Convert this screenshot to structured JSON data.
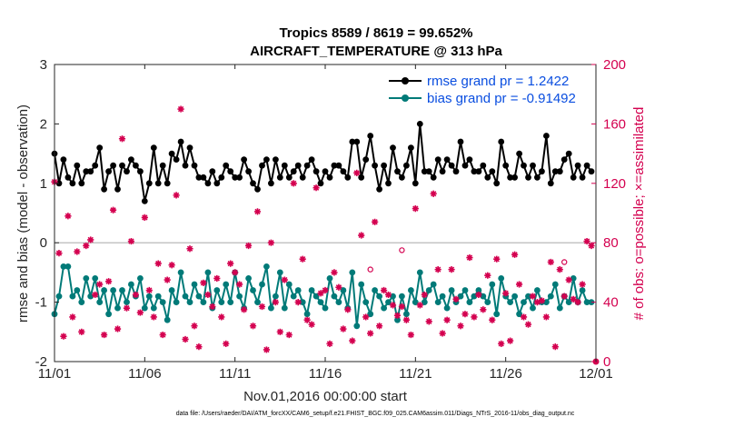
{
  "chart_data": {
    "type": "line",
    "title": "Tropics 8589 / 8619 = 99.652%",
    "subtitle": "AIRCRAFT_TEMPERATURE @ 313 hPa",
    "xlabel": "Nov.01,2016 00:00:00 start",
    "ylabel": "rmse and bias (model - observation)",
    "ylabel_right": "# of obs: o=possible; ×=assimilated",
    "x_tick_labels": [
      "11/01",
      "11/06",
      "11/11",
      "11/16",
      "11/21",
      "11/26",
      "12/01"
    ],
    "x_tick_days": [
      0,
      5,
      10,
      15,
      20,
      25,
      30
    ],
    "xlim": [
      0,
      30
    ],
    "ylim": [
      -2,
      3
    ],
    "y_ticks": [
      -2,
      -1,
      0,
      1,
      2,
      3
    ],
    "ylim_right": [
      0,
      200
    ],
    "y_ticks_right": [
      0,
      40,
      80,
      120,
      160,
      200
    ],
    "legend_position": "top-right",
    "footer": "data file: /Users/raeder/DAI/ATM_forcXX/CAM6_setup/f.e21.FHIST_BGC.f09_025.CAM6assim.011/Diags_NTrS_2016-11/obs_diag_output.nc",
    "series": [
      {
        "name": "rmse grand pr = 1.2422",
        "color": "#000000",
        "axis": "left",
        "x": [
          0.0,
          0.25,
          0.5,
          0.75,
          1.0,
          1.25,
          1.5,
          1.75,
          2.0,
          2.25,
          2.5,
          2.75,
          3.0,
          3.25,
          3.5,
          3.75,
          4.0,
          4.25,
          4.5,
          4.75,
          5.0,
          5.25,
          5.5,
          5.75,
          6.0,
          6.25,
          6.5,
          6.75,
          7.0,
          7.25,
          7.5,
          7.75,
          8.0,
          8.25,
          8.5,
          8.75,
          9.0,
          9.25,
          9.5,
          9.75,
          10.0,
          10.25,
          10.5,
          10.75,
          11.0,
          11.25,
          11.5,
          11.75,
          12.0,
          12.25,
          12.5,
          12.75,
          13.0,
          13.25,
          13.5,
          13.75,
          14.0,
          14.25,
          14.5,
          14.75,
          15.0,
          15.25,
          15.5,
          15.75,
          16.0,
          16.25,
          16.5,
          16.75,
          17.0,
          17.25,
          17.5,
          17.75,
          18.0,
          18.25,
          18.5,
          18.75,
          19.0,
          19.25,
          19.5,
          19.75,
          20.0,
          20.25,
          20.5,
          20.75,
          21.0,
          21.25,
          21.5,
          21.75,
          22.0,
          22.25,
          22.5,
          22.75,
          23.0,
          23.25,
          23.5,
          23.75,
          24.0,
          24.25,
          24.5,
          24.75,
          25.0,
          25.25,
          25.5,
          25.75,
          26.0,
          26.25,
          26.5,
          26.75,
          27.0,
          27.25,
          27.5,
          27.75,
          28.0,
          28.25,
          28.5,
          28.75,
          29.0,
          29.25,
          29.5,
          29.75
        ],
        "values": [
          1.5,
          1.0,
          1.4,
          1.1,
          1.0,
          1.3,
          1.0,
          1.2,
          1.2,
          1.3,
          1.6,
          0.9,
          1.2,
          1.3,
          0.9,
          1.3,
          1.2,
          1.4,
          1.3,
          1.2,
          0.7,
          1.0,
          1.6,
          1.0,
          1.3,
          1.0,
          1.5,
          1.4,
          1.7,
          1.3,
          1.6,
          1.3,
          1.1,
          1.1,
          1.0,
          1.2,
          1.0,
          1.1,
          1.3,
          1.2,
          1.1,
          1.1,
          1.4,
          1.2,
          1.0,
          0.9,
          1.3,
          1.4,
          1.0,
          1.4,
          1.1,
          1.3,
          1.1,
          1.2,
          1.3,
          1.1,
          1.3,
          1.4,
          1.2,
          1.0,
          1.2,
          1.1,
          1.3,
          1.3,
          1.2,
          1.1,
          1.7,
          1.7,
          1.1,
          1.4,
          1.8,
          1.3,
          0.9,
          1.3,
          1.0,
          1.6,
          1.2,
          1.1,
          1.3,
          1.6,
          1.0,
          2.0,
          1.2,
          1.2,
          1.1,
          1.4,
          1.2,
          1.4,
          1.3,
          1.2,
          1.7,
          1.3,
          1.4,
          1.2,
          1.2,
          1.3,
          1.1,
          1.2,
          1.0,
          1.7,
          1.3,
          1.1,
          1.1,
          1.5,
          1.3,
          1.1,
          1.3,
          1.1,
          1.2,
          1.8,
          1.0,
          1.2,
          1.2,
          1.4,
          1.5,
          1.1,
          1.3,
          1.1,
          1.3,
          1.2
        ],
        "marker": "diamond-filled"
      },
      {
        "name": "bias grand pr = -0.91492",
        "color": "#007a78",
        "axis": "left",
        "x": [
          0.0,
          0.25,
          0.5,
          0.75,
          1.0,
          1.25,
          1.5,
          1.75,
          2.0,
          2.25,
          2.5,
          2.75,
          3.0,
          3.25,
          3.5,
          3.75,
          4.0,
          4.25,
          4.5,
          4.75,
          5.0,
          5.25,
          5.5,
          5.75,
          6.0,
          6.25,
          6.5,
          6.75,
          7.0,
          7.25,
          7.5,
          7.75,
          8.0,
          8.25,
          8.5,
          8.75,
          9.0,
          9.25,
          9.5,
          9.75,
          10.0,
          10.25,
          10.5,
          10.75,
          11.0,
          11.25,
          11.5,
          11.75,
          12.0,
          12.25,
          12.5,
          12.75,
          13.0,
          13.25,
          13.5,
          13.75,
          14.0,
          14.25,
          14.5,
          14.75,
          15.0,
          15.25,
          15.5,
          15.75,
          16.0,
          16.25,
          16.5,
          16.75,
          17.0,
          17.25,
          17.5,
          17.75,
          18.0,
          18.25,
          18.5,
          18.75,
          19.0,
          19.25,
          19.5,
          19.75,
          20.0,
          20.25,
          20.5,
          20.75,
          21.0,
          21.25,
          21.5,
          21.75,
          22.0,
          22.25,
          22.5,
          22.75,
          23.0,
          23.25,
          23.5,
          23.75,
          24.0,
          24.25,
          24.5,
          24.75,
          25.0,
          25.25,
          25.5,
          25.75,
          26.0,
          26.25,
          26.5,
          26.75,
          27.0,
          27.25,
          27.5,
          27.75,
          28.0,
          28.25,
          28.5,
          28.75,
          29.0,
          29.25,
          29.5,
          29.75
        ],
        "values": [
          -1.2,
          -0.9,
          -0.4,
          -0.4,
          -0.9,
          -0.8,
          -1.0,
          -0.6,
          -0.9,
          -0.6,
          -1.0,
          -0.8,
          -1.2,
          -0.8,
          -1.1,
          -0.8,
          -1.0,
          -0.7,
          -0.9,
          -0.6,
          -1.1,
          -0.9,
          -1.1,
          -0.9,
          -1.0,
          -1.3,
          -0.8,
          -1.0,
          -0.5,
          -0.9,
          -1.0,
          -0.7,
          -0.9,
          -1.0,
          -0.5,
          -1.1,
          -0.8,
          -1.0,
          -0.7,
          -1.0,
          -0.5,
          -0.9,
          -1.1,
          -0.6,
          -0.8,
          -1.0,
          -0.7,
          -0.4,
          -1.1,
          -0.9,
          -0.5,
          -1.1,
          -0.7,
          -0.9,
          -0.8,
          -1.0,
          -1.2,
          -0.8,
          -0.9,
          -1.0,
          -1.1,
          -0.6,
          -0.9,
          -1.0,
          -0.8,
          -1.1,
          -0.5,
          -1.4,
          -0.7,
          -1.0,
          -1.2,
          -0.8,
          -0.9,
          -1.1,
          -1.0,
          -0.9,
          -1.3,
          -0.9,
          -1.2,
          -0.8,
          -1.0,
          -0.5,
          -1.0,
          -0.8,
          -0.7,
          -1.0,
          -0.9,
          -1.1,
          -0.8,
          -1.0,
          -0.9,
          -0.8,
          -1.0,
          -0.9,
          -0.8,
          -0.9,
          -1.0,
          -0.7,
          -1.2,
          -0.6,
          -0.9,
          -1.0,
          -0.9,
          -1.2,
          -1.0,
          -0.9,
          -1.1,
          -0.8,
          -1.0,
          -1.0,
          -0.9,
          -0.7,
          -1.1,
          -0.9,
          -1.0,
          -0.6,
          -1.0,
          -0.8,
          -1.0,
          -1.0
        ],
        "marker": "circle-filled"
      },
      {
        "name": "possible",
        "color": "#d4004f",
        "axis": "right",
        "marker": "circle-open",
        "x": [
          17.5,
          19.25,
          28.25
        ],
        "values": [
          62,
          75,
          67
        ]
      },
      {
        "name": "assimilated",
        "color": "#d4004f",
        "axis": "right",
        "marker": "asterisk",
        "x": [
          0.0,
          0.25,
          0.5,
          0.75,
          1.0,
          1.25,
          1.5,
          1.75,
          2.0,
          2.25,
          2.5,
          2.75,
          3.0,
          3.25,
          3.5,
          3.75,
          4.0,
          4.25,
          4.5,
          4.75,
          5.0,
          5.25,
          5.5,
          5.75,
          6.0,
          6.25,
          6.5,
          6.75,
          7.0,
          7.25,
          7.5,
          7.75,
          8.0,
          8.25,
          8.5,
          8.75,
          9.0,
          9.25,
          9.5,
          9.75,
          10.0,
          10.25,
          10.5,
          10.75,
          11.0,
          11.25,
          11.5,
          11.75,
          12.0,
          12.25,
          12.5,
          12.75,
          13.0,
          13.25,
          13.5,
          13.75,
          14.0,
          14.25,
          14.5,
          14.75,
          15.0,
          15.25,
          15.5,
          15.75,
          16.0,
          16.25,
          16.5,
          16.75,
          17.0,
          17.25,
          17.5,
          17.75,
          18.0,
          18.25,
          18.5,
          18.75,
          19.0,
          19.25,
          19.5,
          19.75,
          20.0,
          20.25,
          20.5,
          20.75,
          21.0,
          21.25,
          21.5,
          21.75,
          22.0,
          22.25,
          22.5,
          22.75,
          23.0,
          23.25,
          23.5,
          23.75,
          24.0,
          24.25,
          24.5,
          24.75,
          25.0,
          25.25,
          25.5,
          25.75,
          26.0,
          26.25,
          26.5,
          26.75,
          27.0,
          27.25,
          27.5,
          27.75,
          28.0,
          28.25,
          28.5,
          28.75,
          29.0,
          29.25,
          29.5,
          29.75
        ],
        "values": [
          121,
          73,
          17,
          98,
          30,
          74,
          20,
          78,
          82,
          45,
          52,
          18,
          54,
          102,
          22,
          150,
          36,
          81,
          45,
          33,
          97,
          48,
          30,
          66,
          18,
          55,
          65,
          112,
          170,
          15,
          76,
          24,
          10,
          53,
          45,
          37,
          56,
          30,
          12,
          66,
          60,
          52,
          35,
          78,
          24,
          101,
          37,
          8,
          80,
          40,
          20,
          55,
          18,
          120,
          40,
          69,
          28,
          25,
          117,
          46,
          48,
          12,
          60,
          50,
          22,
          35,
          14,
          127,
          85,
          30,
          19,
          94,
          24,
          48,
          45,
          38,
          31,
          37,
          28,
          18,
          103,
          38,
          45,
          27,
          113,
          62,
          19,
          28,
          62,
          42,
          24,
          32,
          70,
          30,
          45,
          35,
          58,
          28,
          69,
          12,
          46,
          14,
          72,
          52,
          30,
          25,
          44,
          40,
          41,
          30,
          67,
          10,
          62,
          44,
          55,
          42,
          40,
          52,
          81,
          78
        ]
      }
    ]
  }
}
